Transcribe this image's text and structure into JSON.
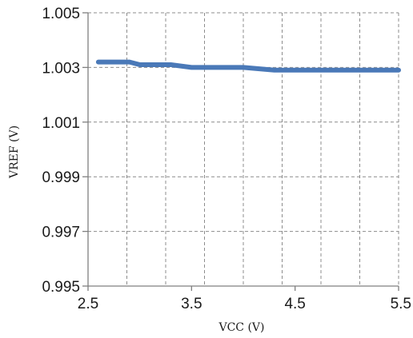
{
  "chart_data": {
    "type": "line",
    "title": "",
    "xlabel": "VCC (V)",
    "ylabel": "VREF (V)",
    "xlim": [
      2.5,
      5.5
    ],
    "ylim": [
      0.995,
      1.005
    ],
    "x_ticks": [
      "2.5",
      "3.5",
      "4.5",
      "5.5"
    ],
    "x_tick_values": [
      2.5,
      3.5,
      4.5,
      5.5
    ],
    "x_grid_values": [
      2.5,
      2.875,
      3.25,
      3.625,
      4.0,
      4.375,
      4.75,
      5.125,
      5.5
    ],
    "y_ticks": [
      "0.995",
      "0.997",
      "0.999",
      "1.001",
      "1.003",
      "1.005"
    ],
    "y_tick_values": [
      0.995,
      0.997,
      0.999,
      1.001,
      1.003,
      1.005
    ],
    "grid": true,
    "series": [
      {
        "color": "#4a79b8",
        "x": [
          2.6,
          2.9,
          3.0,
          3.3,
          3.5,
          4.0,
          4.3,
          4.5,
          5.0,
          5.5
        ],
        "y": [
          1.0032,
          1.0032,
          1.0031,
          1.0031,
          1.003,
          1.003,
          1.0029,
          1.0029,
          1.0029,
          1.0029
        ]
      }
    ]
  }
}
